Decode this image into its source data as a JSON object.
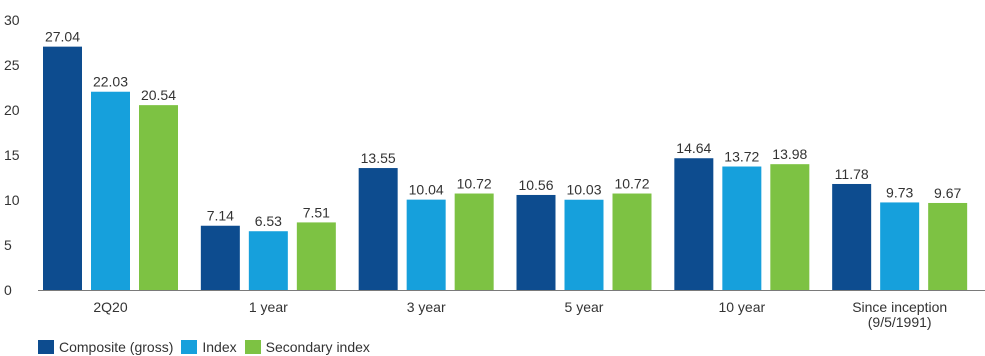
{
  "chart_data": {
    "type": "bar",
    "categories": [
      "2Q20",
      "1 year",
      "3 year",
      "5 year",
      "10 year",
      "Since inception\n(9/5/1991)"
    ],
    "series": [
      {
        "name": "Composite (gross)",
        "color": "#0d4c8f",
        "values": [
          27.04,
          7.14,
          13.55,
          10.56,
          14.64,
          11.78
        ]
      },
      {
        "name": "Index",
        "color": "#16a0dc",
        "values": [
          22.03,
          6.53,
          10.04,
          10.03,
          13.72,
          9.73
        ]
      },
      {
        "name": "Secondary index",
        "color": "#7dc243",
        "values": [
          20.54,
          7.51,
          10.72,
          10.72,
          13.98,
          9.67
        ]
      }
    ],
    "ylim": [
      0,
      30
    ],
    "yticks": [
      0,
      5,
      10,
      15,
      20,
      25,
      30
    ],
    "grid": false,
    "legend": "bottom-left",
    "title": "",
    "xlabel": "",
    "ylabel": ""
  }
}
